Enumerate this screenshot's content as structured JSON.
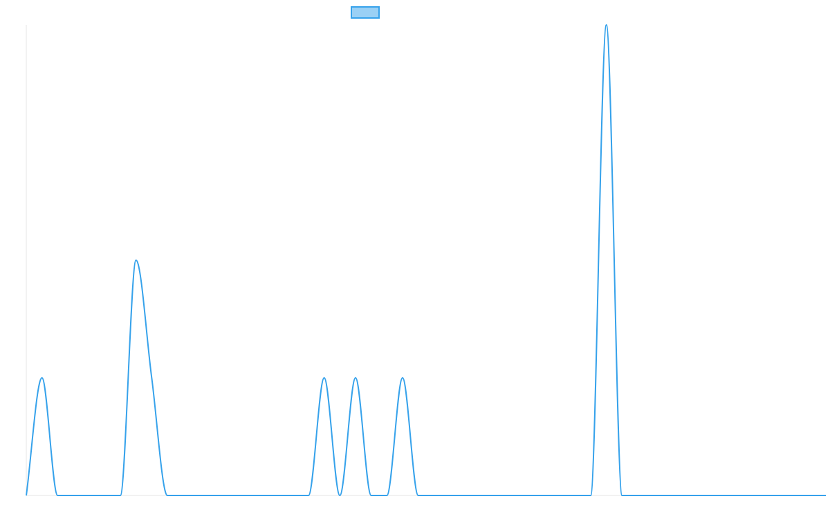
{
  "colors": {
    "line": "#36A2EB",
    "legend_fill": "#9AD0F5",
    "axis": "#E5E5E5"
  },
  "chart_data": {
    "type": "line",
    "title": "",
    "xlabel": "",
    "ylabel": "",
    "grid": false,
    "legend": {
      "position": "top",
      "entries": [
        ""
      ]
    },
    "x": [
      0,
      1,
      2,
      3,
      4,
      5,
      6,
      7,
      8,
      9,
      10,
      11,
      12,
      13,
      14,
      15,
      16,
      17,
      18,
      19,
      20,
      21,
      22,
      23,
      24,
      25,
      26,
      27,
      28,
      29,
      30,
      31,
      32,
      33,
      34,
      35,
      36,
      37,
      38,
      39,
      40,
      41,
      42,
      43,
      44,
      45,
      46,
      47,
      48,
      49,
      50,
      51
    ],
    "ylim": [
      0,
      4
    ],
    "series": [
      {
        "values": [
          0,
          1,
          0,
          0,
          0,
          0,
          0,
          2,
          1,
          0,
          0,
          0,
          0,
          0,
          0,
          0,
          0,
          0,
          0,
          1,
          0,
          1,
          0,
          0,
          1,
          0,
          0,
          0,
          0,
          0,
          0,
          0,
          0,
          0,
          0,
          0,
          0,
          4,
          0,
          0,
          0,
          0,
          0,
          0,
          0,
          0,
          0,
          0,
          0,
          0,
          0,
          0
        ]
      }
    ]
  }
}
